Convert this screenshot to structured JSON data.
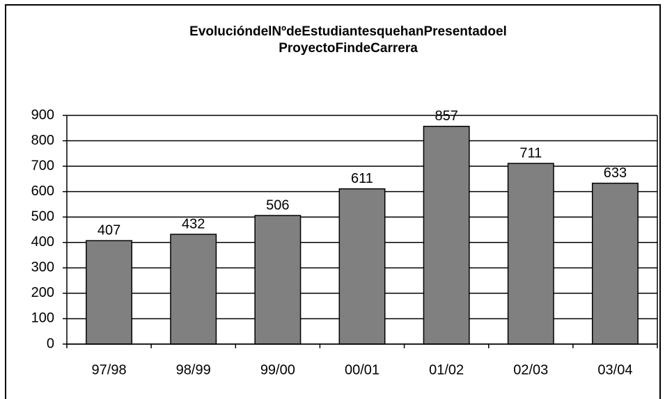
{
  "chart_data": {
    "type": "bar",
    "title": [
      "EvolucióndelNºdeEstudiantesquehanPresentadoel",
      "ProyectoFindeCarrera"
    ],
    "categories": [
      "97/98",
      "98/99",
      "99/00",
      "00/01",
      "01/02",
      "02/03",
      "03/04"
    ],
    "values": [
      407,
      432,
      506,
      611,
      857,
      711,
      633
    ],
    "color": "#808080",
    "ylim": [
      0,
      900
    ],
    "yticks": [
      0,
      100,
      200,
      300,
      400,
      500,
      600,
      700,
      800,
      900
    ],
    "grid": true
  }
}
